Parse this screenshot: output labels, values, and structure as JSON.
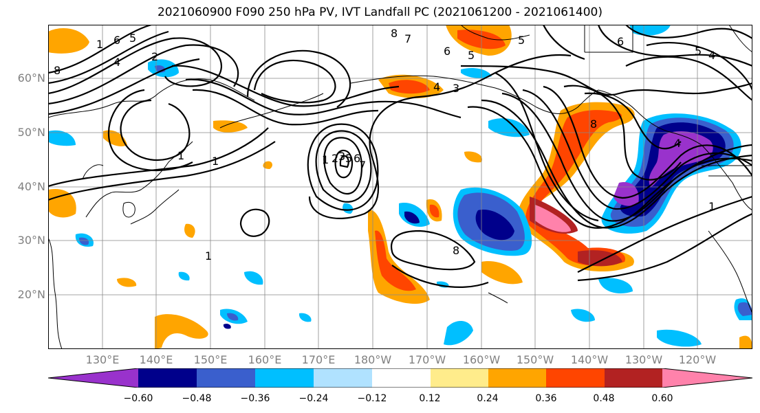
{
  "title": "2021060900 F090 250 hPa PV, IVT Landfall PC (2021061200 - 2021061400)",
  "lat_labels": [
    "60°N",
    "50°N",
    "40°N",
    "30°N",
    "20°N"
  ],
  "lon_labels": [
    "130°E",
    "140°E",
    "150°E",
    "160°E",
    "170°E",
    "180°W",
    "170°W",
    "160°W",
    "150°W",
    "140°W",
    "130°W",
    "120°W"
  ],
  "colorbar": {
    "colors": [
      "#9932cc",
      "#00008b",
      "#3a5fcd",
      "#00bfff",
      "#b0e2ff",
      "#ffffff",
      "#ffec8b",
      "#ffa500",
      "#ff4500",
      "#b22222",
      "#ff82ab"
    ],
    "ticks": [
      "−0.60",
      "−0.48",
      "−0.36",
      "−0.24",
      "−0.12",
      "0.12",
      "0.24",
      "0.36",
      "0.48",
      "0.60"
    ]
  },
  "contour_labels": [
    "8",
    "1",
    "6",
    "5",
    "4",
    "2",
    "8",
    "7",
    "6",
    "5",
    "4",
    "3",
    "5",
    "6",
    "5",
    "4",
    "1",
    "1",
    "1",
    "2",
    "3",
    "5",
    "6",
    "7",
    "8",
    "1",
    "8",
    "4",
    "1"
  ]
}
